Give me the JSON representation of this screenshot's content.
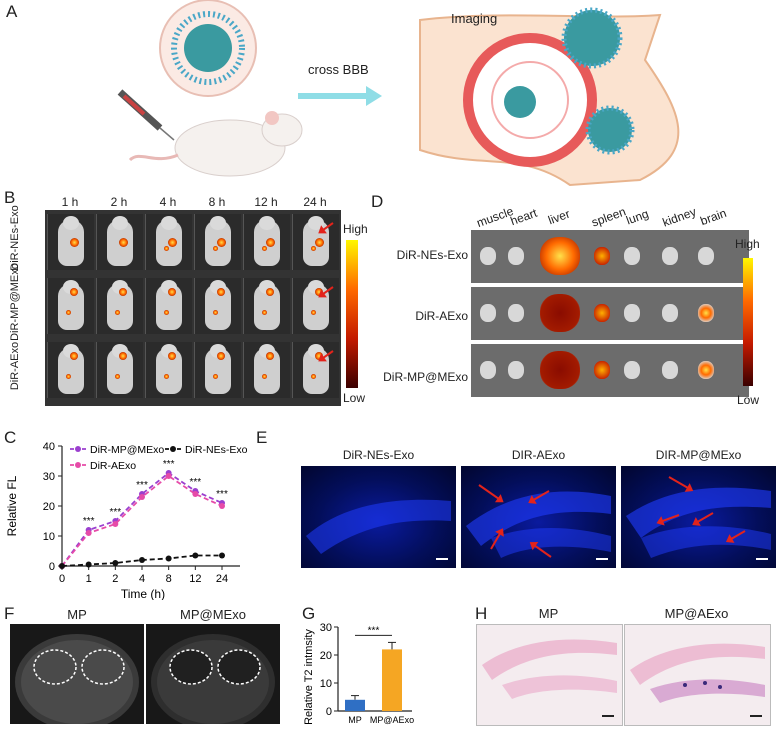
{
  "panels": {
    "A": "A",
    "B": "B",
    "C": "C",
    "D": "D",
    "E": "E",
    "F": "F",
    "G": "G",
    "H": "H"
  },
  "panel_a": {
    "arrow_label": "cross BBB",
    "imaging_label": "Imaging"
  },
  "panel_b": {
    "timepoints": [
      "1 h",
      "2 h",
      "4 h",
      "8 h",
      "12 h",
      "24 h"
    ],
    "rows": [
      "DiR-NEs-Exo",
      "DiR-MP@MExo",
      "DiR-AExo"
    ],
    "scale_high": "High",
    "scale_low": "Low"
  },
  "panel_d": {
    "organs": [
      "muscle",
      "heart",
      "liver",
      "spleen",
      "lung",
      "kidney",
      "brain"
    ],
    "rows": [
      "DiR-NEs-Exo",
      "DiR-AExo",
      "DiR-MP@MExo"
    ],
    "scale_high": "High",
    "scale_low": "Low"
  },
  "panel_e": {
    "titles": [
      "DiR-NEs-Exo",
      "DIR-AExo",
      "DIR-MP@MExo"
    ]
  },
  "panel_f": {
    "titles": [
      "MP",
      "MP@MExo"
    ]
  },
  "panel_h": {
    "titles": [
      "MP",
      "MP@AExo"
    ]
  },
  "chart_data": [
    {
      "type": "line",
      "panel": "C",
      "xlabel": "Time (h)",
      "ylabel": "Relative FL",
      "categories": [
        "0",
        "1",
        "2",
        "4",
        "8",
        "12",
        "24"
      ],
      "yticks": [
        "0",
        "10",
        "20",
        "30",
        "40"
      ],
      "ylim": [
        0,
        40
      ],
      "series": [
        {
          "name": "DiR-MP@MExo",
          "color": "#9b3fcf",
          "values": [
            0,
            12,
            15,
            24,
            31,
            25,
            21
          ]
        },
        {
          "name": "DiR-AExo",
          "color": "#e64ba8",
          "values": [
            0,
            11,
            14,
            23,
            30,
            24,
            20
          ]
        },
        {
          "name": "DiR-NEs-Exo",
          "color": "#111111",
          "values": [
            0,
            0.5,
            1,
            2,
            2.5,
            3.5,
            3.5
          ]
        }
      ],
      "annotations": [
        "***",
        "***",
        "***",
        "***",
        "***",
        "***"
      ]
    },
    {
      "type": "bar",
      "panel": "G",
      "ylabel": "Relative  T2 intmsity",
      "categories": [
        "MP",
        "MP@AExo"
      ],
      "values": [
        4,
        22
      ],
      "errors": [
        1.5,
        2.5
      ],
      "colors": [
        "#2f6fc4",
        "#f5a623"
      ],
      "yticks": [
        "0",
        "10",
        "20",
        "30"
      ],
      "ylim": [
        0,
        30
      ],
      "annotation": "***"
    }
  ]
}
